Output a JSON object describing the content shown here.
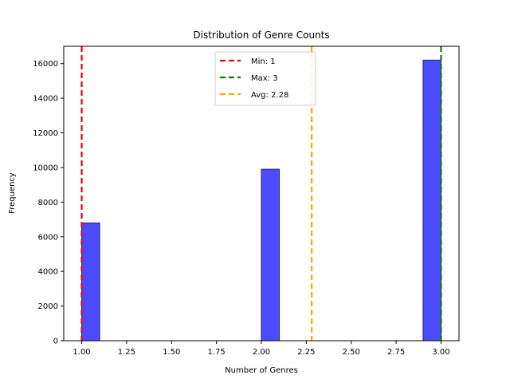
{
  "chart_data": {
    "type": "bar",
    "title": "Distribution of Genre Counts",
    "xlabel": "Number of Genres",
    "ylabel": "Frequency",
    "xlim": [
      0.9,
      3.1
    ],
    "ylim": [
      0,
      17000
    ],
    "x_ticks": [
      1.0,
      1.25,
      1.5,
      1.75,
      2.0,
      2.25,
      2.5,
      2.75,
      3.0
    ],
    "x_tick_labels": [
      "1.00",
      "1.25",
      "1.50",
      "1.75",
      "2.00",
      "2.25",
      "2.50",
      "2.75",
      "3.00"
    ],
    "y_ticks": [
      0,
      2000,
      4000,
      6000,
      8000,
      10000,
      12000,
      14000,
      16000
    ],
    "y_tick_labels": [
      "0",
      "2000",
      "4000",
      "6000",
      "8000",
      "10000",
      "12000",
      "14000",
      "16000"
    ],
    "bins": [
      {
        "x0": 1.0,
        "x1": 1.1,
        "value": 6800
      },
      {
        "x0": 2.0,
        "x1": 2.1,
        "value": 9900
      },
      {
        "x0": 2.9,
        "x1": 3.0,
        "value": 16200
      }
    ],
    "bar_color": "#4b4bff",
    "bar_edge_color": "#222266",
    "reference_lines": [
      {
        "label": "Min: 1",
        "x": 1,
        "color": "#ee0000"
      },
      {
        "label": "Max: 3",
        "x": 3,
        "color": "#008000"
      },
      {
        "label": "Avg: 2.28",
        "x": 2.28,
        "color": "#ffa500"
      }
    ],
    "legend_position": "upper center",
    "grid": false
  }
}
